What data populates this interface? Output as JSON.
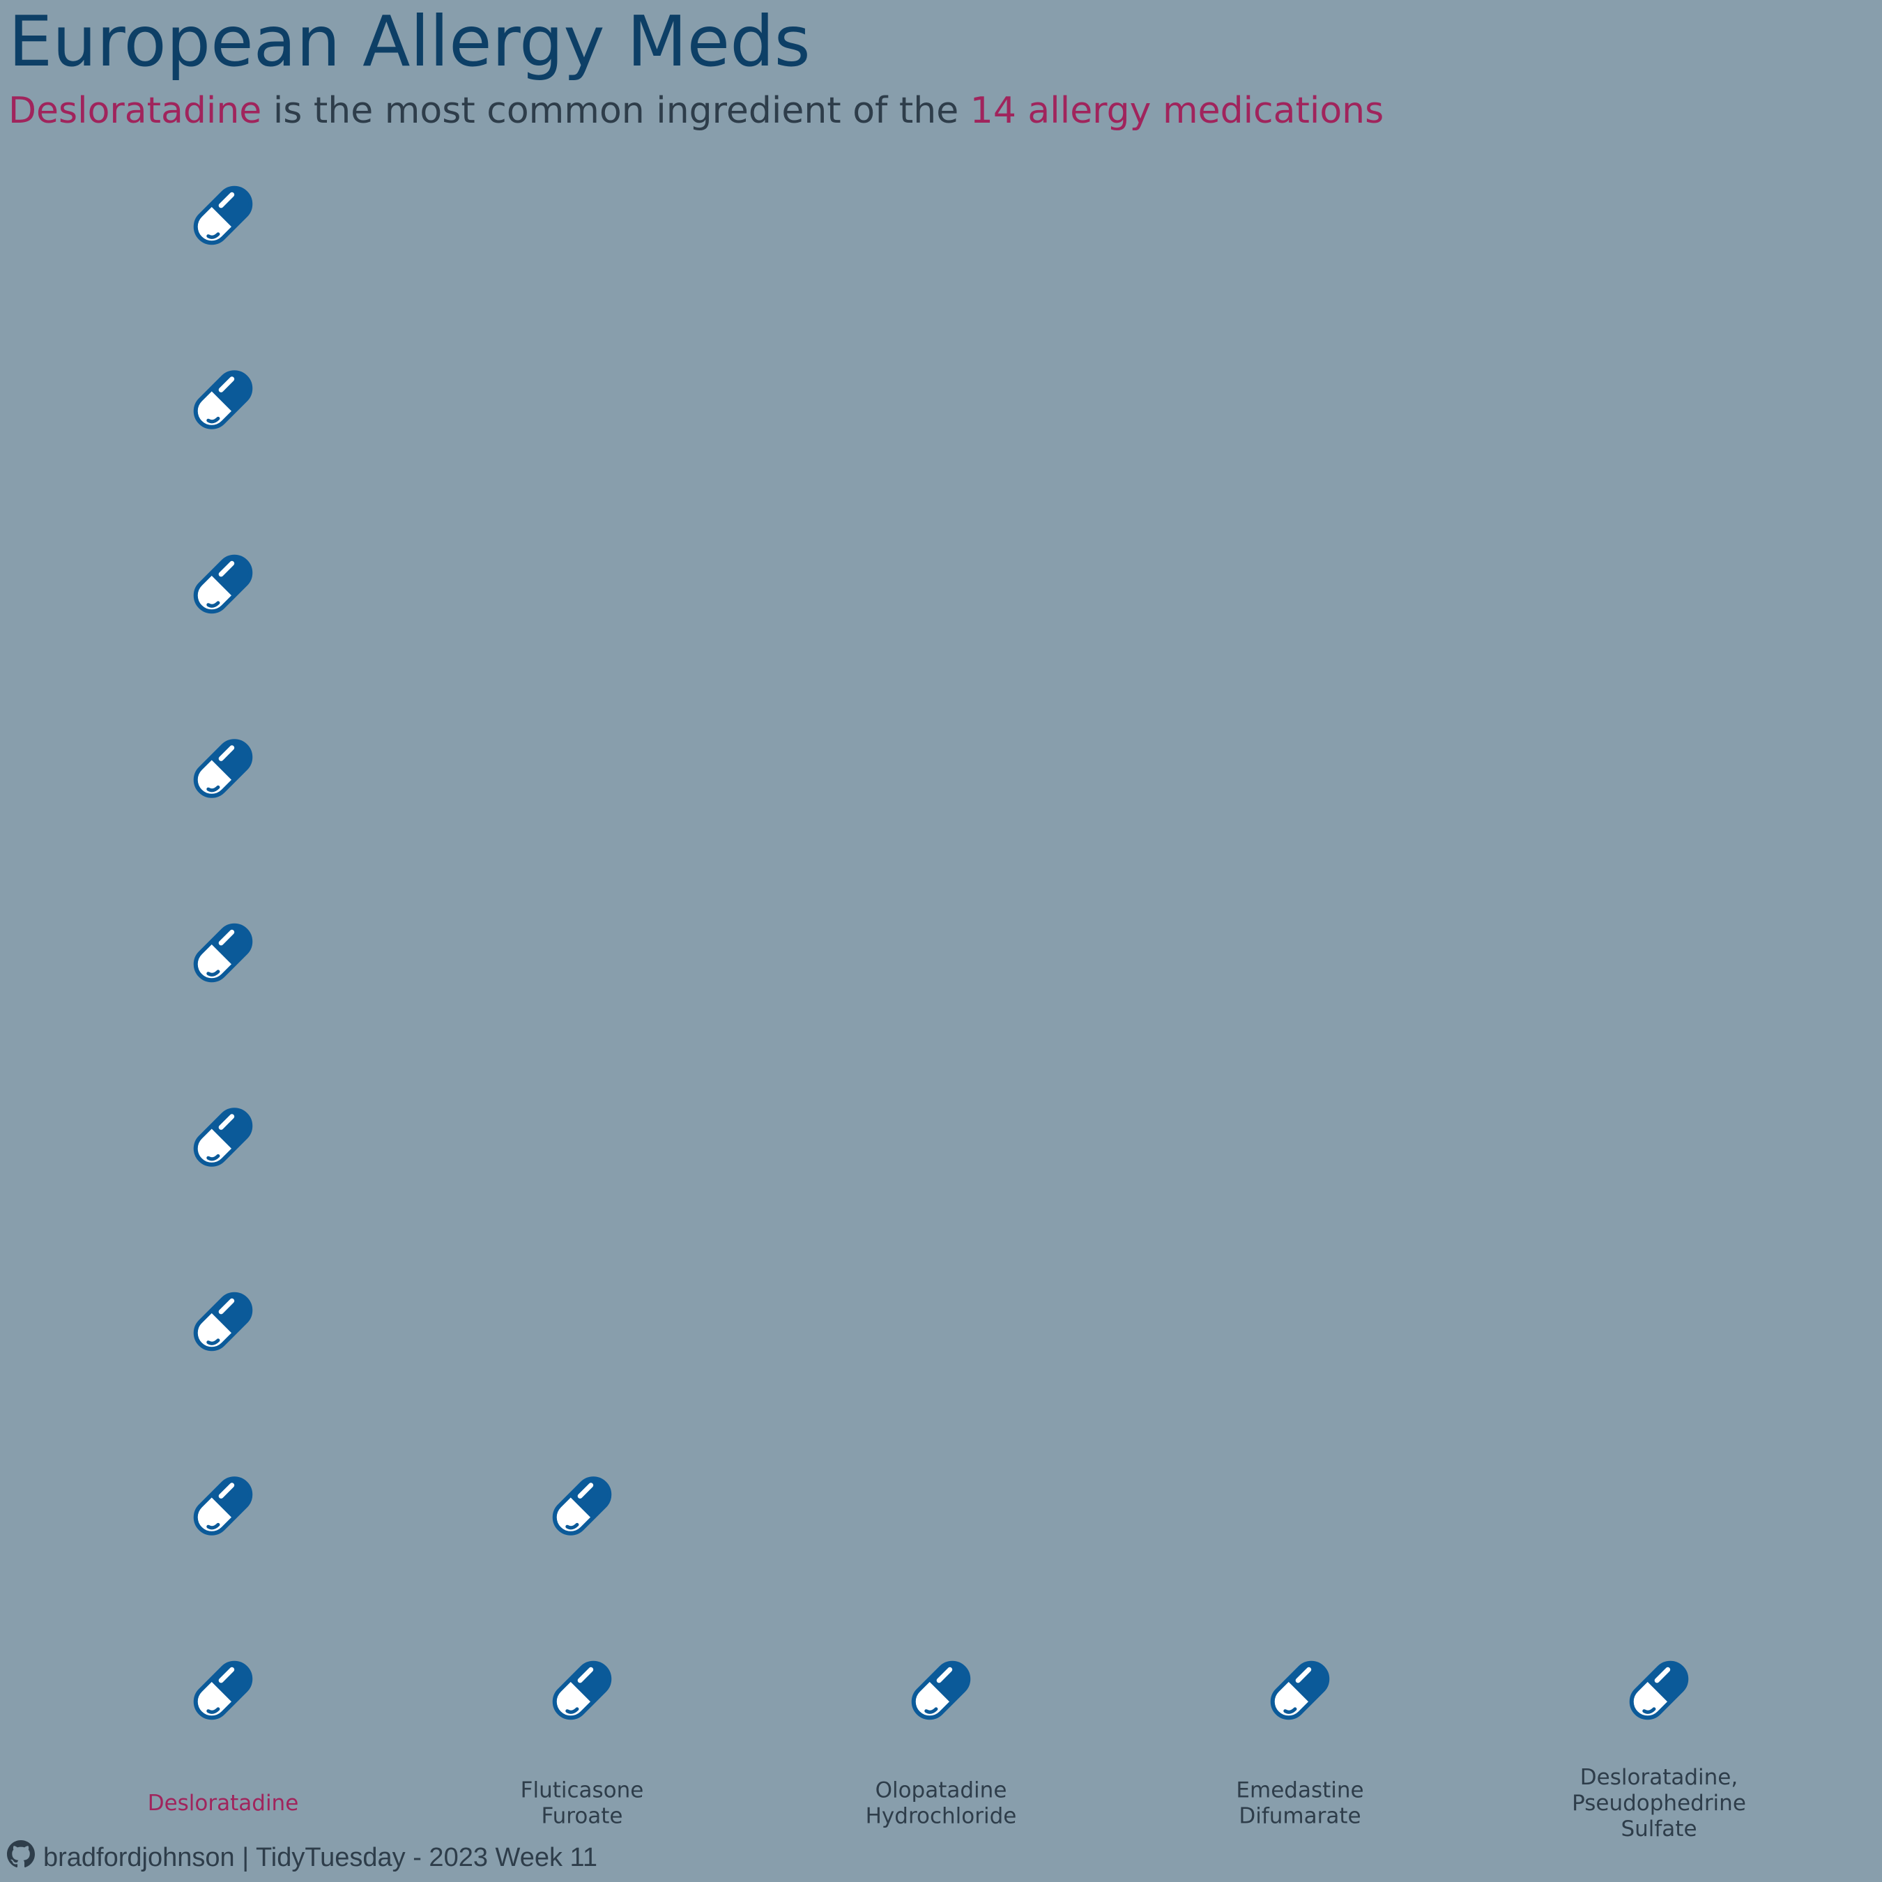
{
  "header": {
    "title": "European Allergy Meds",
    "subtitle_highlight_1": "Desloratadine",
    "subtitle_middle": " is the most common ingredient of the ",
    "subtitle_highlight_2": "14 allergy medications"
  },
  "caption": {
    "icon": "github-icon",
    "text": "bradfordjohnson | TidyTuesday - 2023 Week 11"
  },
  "colors": {
    "background": "#889eac",
    "title": "#0d3f66",
    "text": "#2e3d4a",
    "highlight": "#a0245c",
    "pill": "#0b5a99",
    "pill_light": "#ffffff"
  },
  "chart_data": {
    "type": "pictograph",
    "mark_icon": "pill-icon",
    "highlight_category_index": 0,
    "categories": [
      [
        "Desloratadine"
      ],
      [
        "Fluticasone",
        "Furoate"
      ],
      [
        "Olopatadine",
        "Hydrochloride"
      ],
      [
        "Emedastine",
        "Difumarate"
      ],
      [
        "Desloratadine,",
        "Pseudophedrine",
        "Sulfate"
      ]
    ],
    "values": [
      9,
      2,
      1,
      1,
      1
    ]
  }
}
